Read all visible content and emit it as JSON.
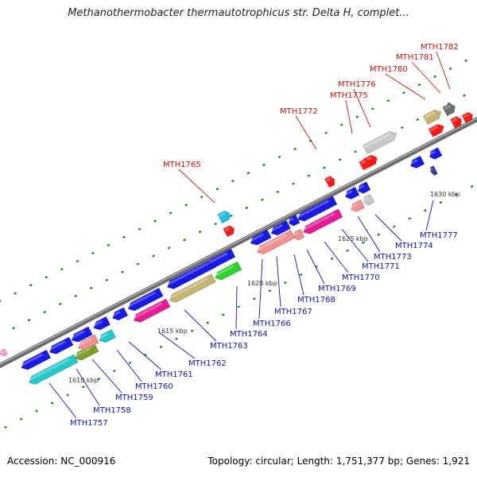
{
  "title": "Methanothermobacter thermautotrophicus str. Delta H, complet...",
  "footer": {
    "accession": "Accession: NC_000916",
    "summary": "Topology: circular; Length: 1,751,377 bp; Genes: 1,921"
  },
  "colors": {
    "backbone": "#7a7a7a",
    "dot": "#1e7a1e",
    "forward_label": "#d01010",
    "reverse_label": "#1414b4",
    "pointer_forward": "#d01010",
    "pointer_reverse": "#1414b4"
  },
  "ticks": [
    {
      "label": "1610 kbp"
    },
    {
      "label": "1615 kbp"
    },
    {
      "label": "1620 kbp"
    },
    {
      "label": "1625 kbp"
    },
    {
      "label": "1630 kbp"
    }
  ],
  "genes_forward": [
    {
      "name": "MTH1765",
      "color": "#22bde6"
    },
    {
      "name": "MTH1772",
      "color": "#ff1a1a"
    },
    {
      "name": "MTH1775",
      "color": "#ff1a1a"
    },
    {
      "name": "MTH1776",
      "color": "#c8c8c8"
    },
    {
      "name": "MTH1780",
      "color": "#c4b672"
    },
    {
      "name": "MTH1781",
      "color": "#6e6e6e"
    },
    {
      "name": "MTH1782",
      "color": "#ff1a1a"
    }
  ],
  "genes_reverse": [
    {
      "name": "MTH1757",
      "color": "#25c9c9"
    },
    {
      "name": "MTH1758",
      "color": "#7fa02a"
    },
    {
      "name": "MTH1759",
      "color": "#25c9c9"
    },
    {
      "name": "MTH1760",
      "color": "#1a1ae6"
    },
    {
      "name": "MTH1761",
      "color": "#e81a96"
    },
    {
      "name": "MTH1762",
      "color": "#1a1ae6"
    },
    {
      "name": "MTH1763",
      "color": "#c4b672"
    },
    {
      "name": "MTH1764",
      "color": "#2ed42e"
    },
    {
      "name": "MTH1766",
      "color": "#f09090"
    },
    {
      "name": "MTH1767",
      "color": "#1a1ae6"
    },
    {
      "name": "MTH1768",
      "color": "#f09090"
    },
    {
      "name": "MTH1769",
      "color": "#e81a96"
    },
    {
      "name": "MTH1770",
      "color": "#1a1ae6"
    },
    {
      "name": "MTH1771",
      "color": "#1a1ae6"
    },
    {
      "name": "MTH1773",
      "color": "#f09090"
    },
    {
      "name": "MTH1774",
      "color": "#c8c8c8"
    },
    {
      "name": "MTH1777",
      "color": "#3a3aa0"
    }
  ]
}
